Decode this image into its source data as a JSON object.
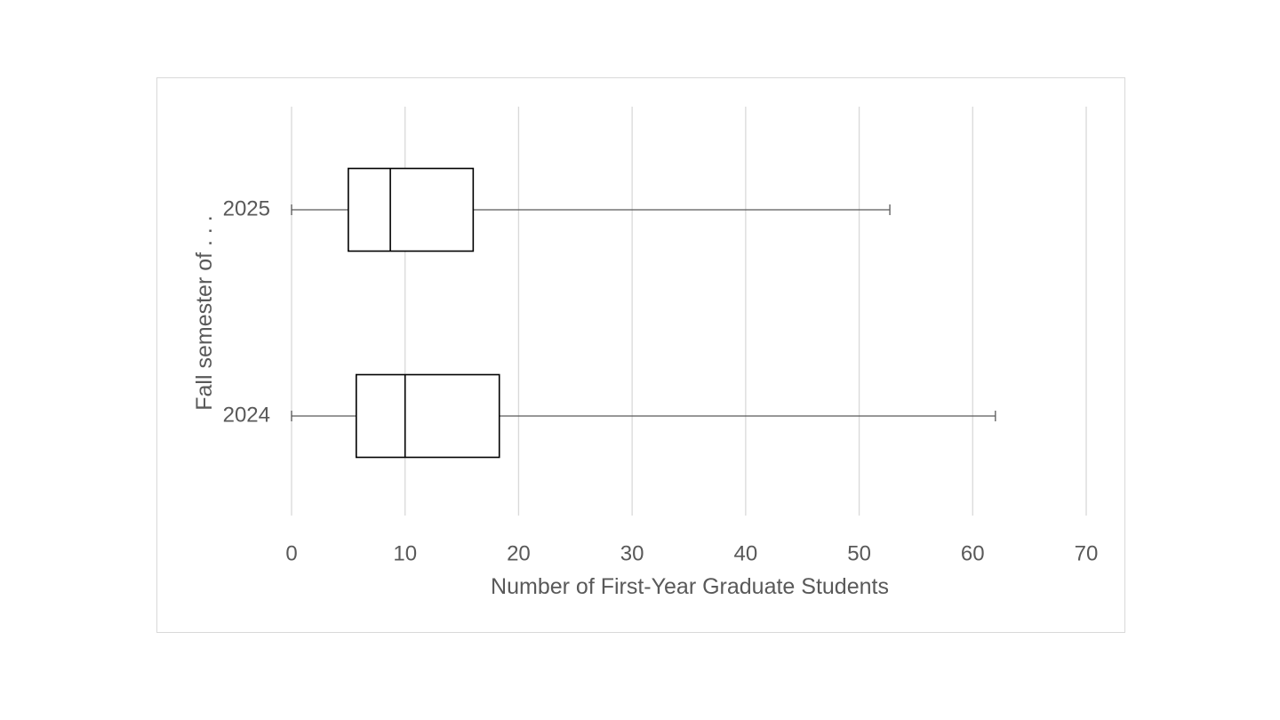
{
  "chart_data": {
    "type": "boxplot",
    "orientation": "horizontal",
    "xlabel": "Number of First-Year Graduate Students",
    "ylabel": "Fall semester of . . .",
    "xlim": [
      0,
      70
    ],
    "x_ticks": [
      0,
      10,
      20,
      30,
      40,
      50,
      60,
      70
    ],
    "categories": [
      "2025",
      "2024"
    ],
    "boxes": [
      {
        "label": "2025",
        "min": 0,
        "q1": 5,
        "median": 8.7,
        "q3": 16,
        "max": 52.7
      },
      {
        "label": "2024",
        "min": 0,
        "q1": 5.7,
        "median": 10,
        "q3": 18.3,
        "max": 62
      }
    ],
    "grid": "vertical",
    "legend": "none",
    "colors": {
      "box_stroke": "#000000",
      "whisker": "#595959",
      "grid": "#d9d9d9",
      "text": "#595959",
      "frame": "#d9d9d9"
    }
  }
}
